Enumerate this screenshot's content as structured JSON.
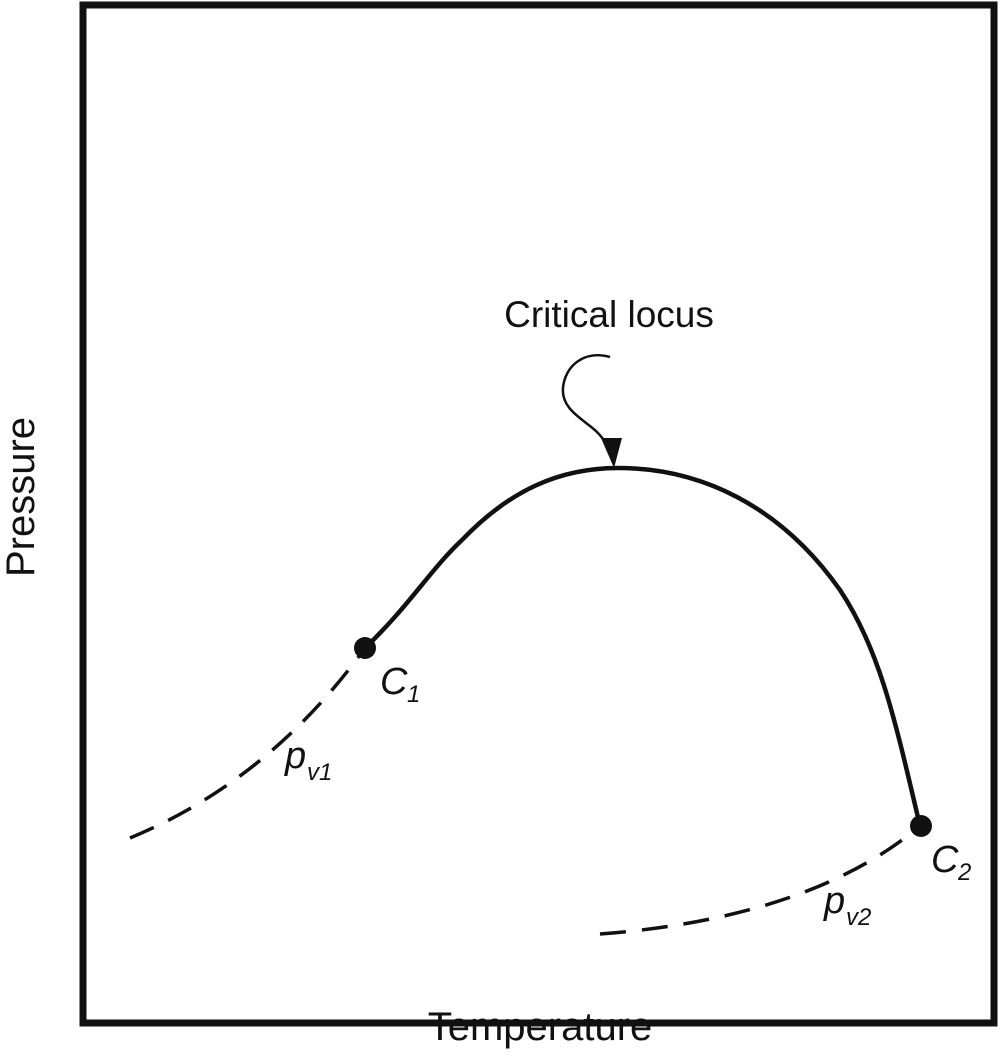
{
  "axes": {
    "x_label": "Temperature",
    "y_label": "Pressure"
  },
  "annotation": {
    "text": "Critical locus"
  },
  "points": {
    "c1": {
      "symbol": "C",
      "subscript": "1"
    },
    "c2": {
      "symbol": "C",
      "subscript": "2"
    }
  },
  "curves": {
    "pv1": {
      "symbol": "p",
      "subscript": "v1",
      "style": "dashed"
    },
    "pv2": {
      "symbol": "p",
      "subscript": "v2",
      "style": "dashed"
    },
    "critical_locus": {
      "style": "solid"
    }
  },
  "colors": {
    "ink": "#111111",
    "background": "#ffffff"
  }
}
